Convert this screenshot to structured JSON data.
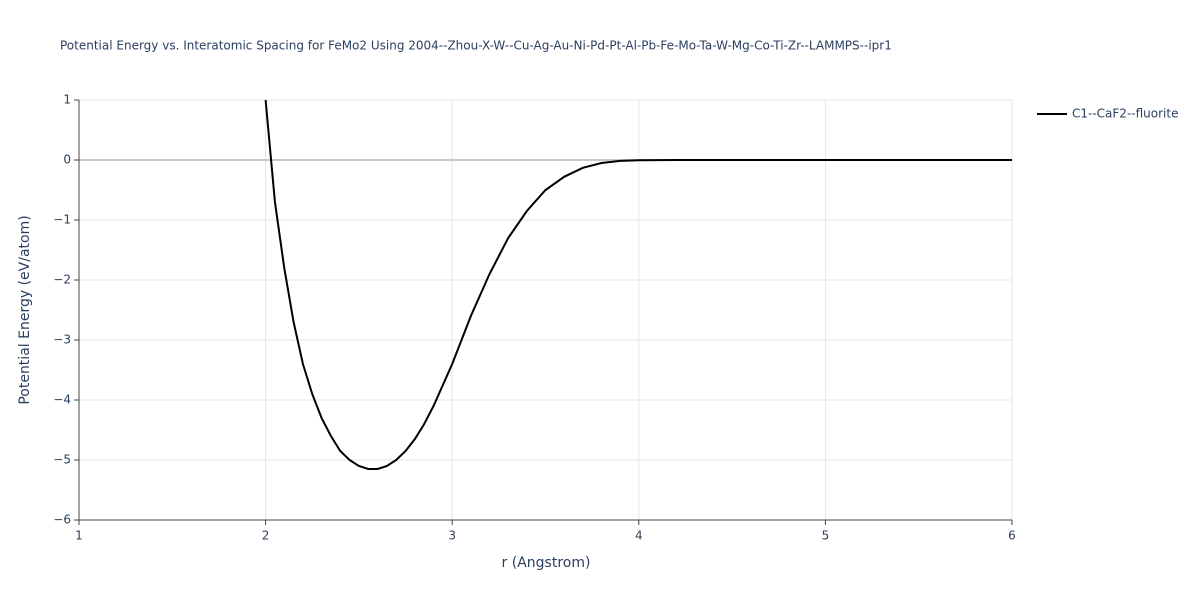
{
  "chart_data": {
    "type": "line",
    "title": "Potential Energy vs. Interatomic Spacing for FeMo2 Using 2004--Zhou-X-W--Cu-Ag-Au-Ni-Pd-Pt-Al-Pb-Fe-Mo-Ta-W-Mg-Co-Ti-Zr--LAMMPS--ipr1",
    "x_label": "r (Angstrom)",
    "y_label": "Potential Energy (eV/atom)",
    "x": [
      2.0,
      2.05,
      2.1,
      2.15,
      2.2,
      2.25,
      2.3,
      2.35,
      2.4,
      2.45,
      2.5,
      2.55,
      2.6,
      2.65,
      2.7,
      2.75,
      2.8,
      2.85,
      2.9,
      3.0,
      3.1,
      3.2,
      3.3,
      3.4,
      3.5,
      3.6,
      3.7,
      3.8,
      3.9,
      4.0,
      4.2,
      4.5,
      5.0,
      5.5,
      6.0
    ],
    "series": [
      {
        "name": "C1--CaF2--fluorite",
        "color": "#000000",
        "values": [
          1.0,
          -0.7,
          -1.8,
          -2.7,
          -3.4,
          -3.9,
          -4.3,
          -4.6,
          -4.85,
          -5.0,
          -5.1,
          -5.15,
          -5.15,
          -5.1,
          -5.0,
          -4.85,
          -4.65,
          -4.4,
          -4.1,
          -3.4,
          -2.6,
          -1.9,
          -1.3,
          -0.85,
          -0.5,
          -0.28,
          -0.13,
          -0.05,
          -0.015,
          -0.005,
          0,
          0,
          0,
          0,
          0
        ]
      }
    ],
    "xlim": [
      1,
      6
    ],
    "xticks": [
      1,
      2,
      3,
      4,
      5,
      6
    ],
    "ylim": [
      -6,
      1
    ],
    "yticks": [
      {
        "value": -6,
        "label": "−6"
      },
      {
        "value": -5,
        "label": "−5"
      },
      {
        "value": -4,
        "label": "−4"
      },
      {
        "value": -3,
        "label": "−3"
      },
      {
        "value": -2,
        "label": "−2"
      },
      {
        "value": -1,
        "label": "−1"
      },
      0,
      1
    ],
    "grid": true,
    "legend": "top-right"
  }
}
